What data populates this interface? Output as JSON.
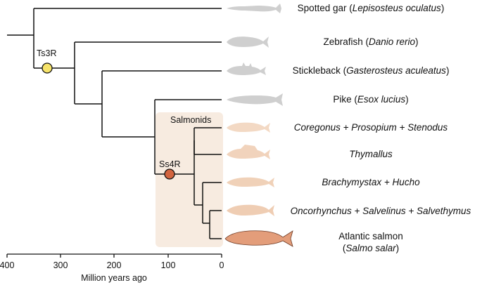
{
  "species": [
    {
      "name_plain": "Spotted gar (",
      "name_italic": "Lepisosteus oculatus",
      "name_tail": ")",
      "fish_color": "#cfcfcf"
    },
    {
      "name_plain": "Zebrafish (",
      "name_italic": "Danio rerio",
      "name_tail": ")",
      "fish_color": "#cfcfcf"
    },
    {
      "name_plain": "Stickleback (",
      "name_italic": "Gasterosteus aculeatus",
      "name_tail": ")",
      "fish_color": "#cfcfcf"
    },
    {
      "name_plain": "Pike (",
      "name_italic": "Esox lucius",
      "name_tail": ")",
      "fish_color": "#cfcfcf"
    },
    {
      "name_plain": "",
      "name_italic": "Coregonus + Prosopium + Stenodus",
      "name_tail": "",
      "fish_color": "#f3d9c4"
    },
    {
      "name_plain": "",
      "name_italic": "Thymallus",
      "name_tail": "",
      "fish_color": "#f1d3bc"
    },
    {
      "name_plain": "",
      "name_italic": "Brachymystax + Hucho",
      "name_tail": "",
      "fish_color": "#f0d1b8"
    },
    {
      "name_plain": "",
      "name_italic": "Oncorhynchus + Salvelinus + Salvethymus",
      "name_tail": "",
      "fish_color": "#efcdb3"
    },
    {
      "name_plain": "Atlantic salmon",
      "name_italic": "Salmo salar",
      "name_tail": "",
      "fish_color": "#e39d7a"
    }
  ],
  "events": [
    {
      "label": "Ts3R",
      "color": "#f6e36a"
    },
    {
      "label": "Ss4R",
      "color": "#d2643f"
    }
  ],
  "clade": {
    "label": "Salmonids",
    "color": "#f7ebe0"
  },
  "axis": {
    "title": "Million years ago",
    "ticks": [
      "400",
      "300",
      "200",
      "100",
      "0"
    ]
  }
}
